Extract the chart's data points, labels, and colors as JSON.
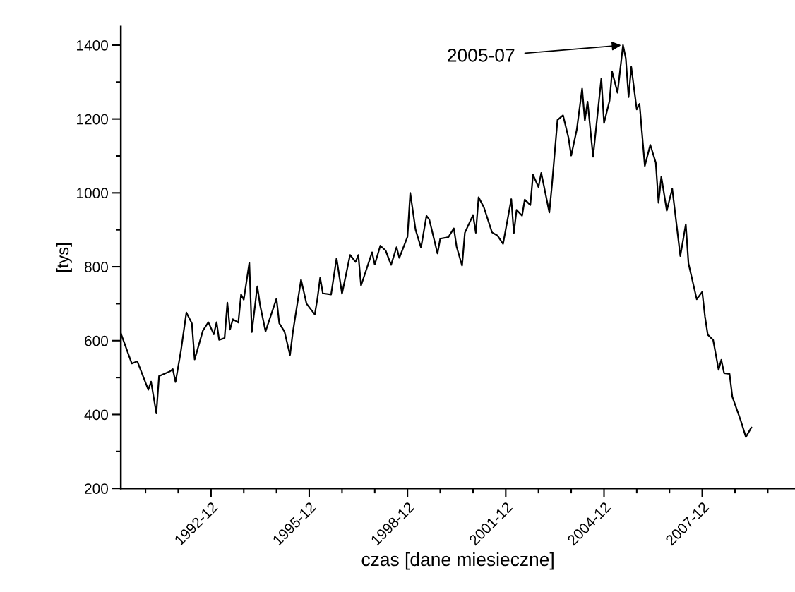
{
  "chart_data": {
    "type": "line",
    "xlabel": "czas [dane miesieczne]",
    "ylabel": "[tys]",
    "annotations": [
      {
        "text": "2005-07",
        "x": "2005-07",
        "y": 1400
      }
    ],
    "x": [
      "1990-03",
      "1990-07",
      "1990-09",
      "1991-01",
      "1991-02",
      "1991-04",
      "1991-05",
      "1991-09",
      "1991-10",
      "1991-11",
      "1992-01",
      "1992-03",
      "1992-05",
      "1992-06",
      "1992-09",
      "1992-11",
      "1993-01",
      "1993-02",
      "1993-03",
      "1993-05",
      "1993-06",
      "1993-07",
      "1993-08",
      "1993-10",
      "1993-11",
      "1993-12",
      "1994-02",
      "1994-03",
      "1994-05",
      "1994-06",
      "1994-08",
      "1994-12",
      "1995-01",
      "1995-03",
      "1995-05",
      "1995-06",
      "1995-09",
      "1995-11",
      "1996-02",
      "1996-03",
      "1996-04",
      "1996-05",
      "1996-08",
      "1996-10",
      "1996-12",
      "1997-03",
      "1997-05",
      "1997-06",
      "1997-07",
      "1997-11",
      "1997-12",
      "1998-02",
      "1998-04",
      "1998-06",
      "1998-08",
      "1998-09",
      "1998-12",
      "1999-01",
      "1999-03",
      "1999-05",
      "1999-07",
      "1999-08",
      "1999-11",
      "1999-12",
      "2000-03",
      "2000-05",
      "2000-06",
      "2000-08",
      "2000-09",
      "2000-12",
      "2001-01",
      "2001-02",
      "2001-04",
      "2001-07",
      "2001-09",
      "2001-11",
      "2002-02",
      "2002-03",
      "2002-04",
      "2002-06",
      "2002-07",
      "2002-09",
      "2002-10",
      "2002-12",
      "2003-01",
      "2003-04",
      "2003-05",
      "2003-07",
      "2003-09",
      "2003-11",
      "2003-12",
      "2004-02",
      "2004-04",
      "2004-05",
      "2004-06",
      "2004-08",
      "2004-11",
      "2004-12",
      "2005-02",
      "2005-03",
      "2005-05",
      "2005-07",
      "2005-08",
      "2005-09",
      "2005-10",
      "2005-12",
      "2006-01",
      "2006-03",
      "2006-05",
      "2006-07",
      "2006-08",
      "2006-09",
      "2006-11",
      "2007-01",
      "2007-04",
      "2007-06",
      "2007-07",
      "2007-10",
      "2007-12",
      "2008-01",
      "2008-02",
      "2008-04",
      "2008-06",
      "2008-07",
      "2008-08",
      "2008-10",
      "2008-11",
      "2009-02",
      "2009-04",
      "2009-06"
    ],
    "series": [
      {
        "color": "#000000",
        "values": [
          620,
          538,
          544,
          467,
          489,
          403,
          504,
          517,
          523,
          488,
          574,
          676,
          647,
          549,
          627,
          650,
          617,
          650,
          602,
          607,
          703,
          630,
          658,
          649,
          725,
          711,
          811,
          623,
          747,
          696,
          625,
          714,
          647,
          624,
          561,
          622,
          765,
          700,
          671,
          713,
          770,
          728,
          725,
          823,
          727,
          832,
          813,
          832,
          749,
          839,
          806,
          857,
          844,
          805,
          853,
          824,
          881,
          1000,
          900,
          852,
          938,
          928,
          836,
          876,
          880,
          904,
          854,
          803,
          892,
          940,
          892,
          988,
          961,
          893,
          884,
          862,
          983,
          891,
          954,
          938,
          982,
          967,
          1049,
          1016,
          1054,
          947,
          1023,
          1197,
          1210,
          1149,
          1101,
          1171,
          1282,
          1196,
          1247,
          1098,
          1310,
          1189,
          1250,
          1328,
          1271,
          1400,
          1364,
          1259,
          1341,
          1226,
          1241,
          1073,
          1130,
          1082,
          973,
          1044,
          952,
          1011,
          829,
          915,
          809,
          712,
          732,
          665,
          616,
          602,
          521,
          548,
          512,
          510,
          448,
          385,
          339,
          365
        ]
      }
    ],
    "xlim": [
      "1990-03",
      "2010-10"
    ],
    "xticks": [
      {
        "value": "1990-12",
        "label": null
      },
      {
        "value": "1991-12",
        "label": null
      },
      {
        "value": "1992-12",
        "label": "1992-12"
      },
      {
        "value": "1993-12",
        "label": null
      },
      {
        "value": "1994-12",
        "label": null
      },
      {
        "value": "1995-12",
        "label": "1995-12"
      },
      {
        "value": "1996-12",
        "label": null
      },
      {
        "value": "1997-12",
        "label": null
      },
      {
        "value": "1998-12",
        "label": "1998-12"
      },
      {
        "value": "1999-12",
        "label": null
      },
      {
        "value": "2000-12",
        "label": null
      },
      {
        "value": "2001-12",
        "label": "2001-12"
      },
      {
        "value": "2002-12",
        "label": null
      },
      {
        "value": "2003-12",
        "label": null
      },
      {
        "value": "2004-12",
        "label": "2004-12"
      },
      {
        "value": "2005-12",
        "label": null
      },
      {
        "value": "2006-12",
        "label": null
      },
      {
        "value": "2007-12",
        "label": "2007-12"
      },
      {
        "value": "2008-12",
        "label": null
      },
      {
        "value": "2009-12",
        "label": null
      }
    ],
    "ylim": [
      200,
      1450
    ],
    "yticks": [
      200,
      {
        "value": 300,
        "label": null
      },
      400,
      {
        "value": 500,
        "label": null
      },
      600,
      {
        "value": 700,
        "label": null
      },
      800,
      {
        "value": 900,
        "label": null
      },
      1000,
      {
        "value": 1100,
        "label": null
      },
      1200,
      {
        "value": 1300,
        "label": null
      },
      1400
    ],
    "grid": false,
    "marker": "none",
    "line_style": "solid"
  }
}
